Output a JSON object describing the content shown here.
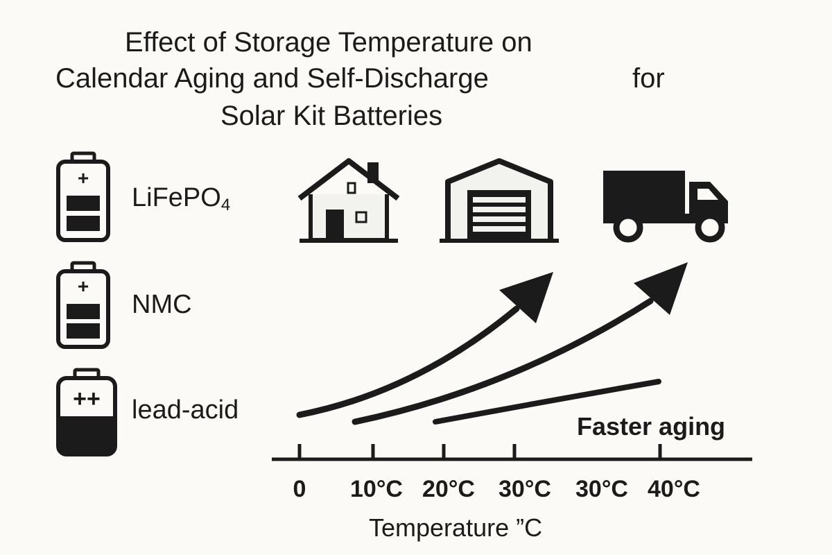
{
  "title": {
    "line1": "Effect of Storage Temperature on",
    "line2": "Calendar Aging and Self-Discharge",
    "line2_tail": "for",
    "line3": "Solar Kit Batteries"
  },
  "batteries": [
    {
      "name": "LiFePO",
      "subscript": "4",
      "terminal_symbol": "+",
      "icon": "battery-icon"
    },
    {
      "name": "NMC",
      "subscript": "",
      "terminal_symbol": "+",
      "icon": "battery-icon"
    },
    {
      "name": "lead-acid",
      "subscript": "",
      "terminal_symbol": "++",
      "icon": "battery-icon"
    }
  ],
  "storage_locations": [
    {
      "icon": "house-icon"
    },
    {
      "icon": "garage-icon"
    },
    {
      "icon": "truck-icon"
    }
  ],
  "annotation": "Faster aging",
  "x_axis": {
    "label": "Temperature ”C",
    "ticks": [
      "0",
      "10°C",
      "20°C",
      "30°C",
      "30°C",
      "40°C"
    ]
  },
  "colors": {
    "background": "#fbfaf6",
    "ink": "#1b1b1b",
    "light_fill": "#ffffff"
  }
}
